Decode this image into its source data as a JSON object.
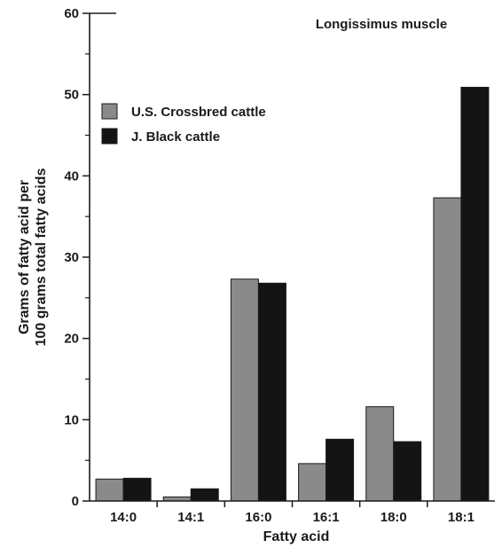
{
  "chart_data": {
    "type": "bar",
    "title": "Longissimus muscle",
    "xlabel": "Fatty acid",
    "ylabel_lines": [
      "Grams of fatty acid per",
      "100 grams total fatty acids"
    ],
    "categories": [
      "14:0",
      "14:1",
      "16:0",
      "16:1",
      "18:0",
      "18:1"
    ],
    "series": [
      {
        "name": "U.S. Crossbred cattle",
        "color": "#8a8a8a",
        "values": [
          2.7,
          0.5,
          27.3,
          4.6,
          11.6,
          37.3
        ]
      },
      {
        "name": "J. Black cattle",
        "color": "#141414",
        "values": [
          2.8,
          1.5,
          26.8,
          7.6,
          7.3,
          50.9
        ]
      }
    ],
    "ylim": [
      0,
      60
    ],
    "yticks": [
      0,
      10,
      20,
      30,
      40,
      50,
      60
    ],
    "legend_position": "upper-left",
    "grid": false
  }
}
